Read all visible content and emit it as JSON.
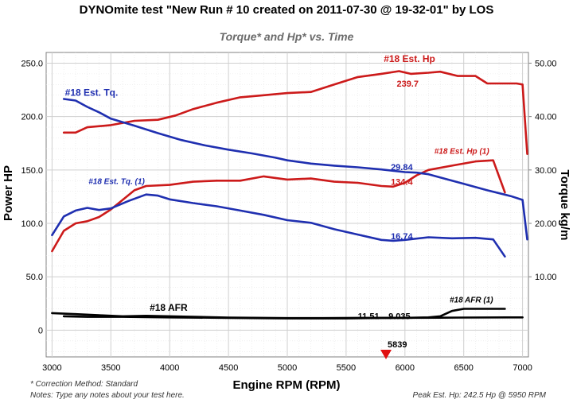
{
  "title": "DYNOmite test \"New Run # 10 created on 2011-07-30 @ 19-32-01\" by LOS",
  "subtitle": "Torque* and Hp* vs. Time",
  "footer": {
    "correction": "* Correction Method: Standard",
    "notes": "Notes: Type any notes about your test here.",
    "peak": "Peak Est. Hp: 242.5 Hp @ 5950 RPM"
  },
  "colors": {
    "hp": "#cc1a1a",
    "torque": "#1f2fb0",
    "afr": "#000000",
    "marker": "#e01010"
  },
  "chart_data": {
    "type": "line",
    "title": "DYNOmite test \"New Run # 10 created on 2011-07-30 @ 19-32-01\" by LOS",
    "subtitle": "Torque* and Hp* vs. Time",
    "xlabel": "Engine RPM (RPM)",
    "ylabel_left": "Power HP",
    "ylabel_right": "Torque kg/m",
    "xlim": [
      2950,
      7050
    ],
    "ylim_left": [
      -25,
      260
    ],
    "ylim_right": [
      -5,
      52
    ],
    "x_ticks": [
      3000,
      3500,
      4000,
      4500,
      5000,
      5500,
      6000,
      6500,
      7000
    ],
    "y_left_ticks": [
      "0",
      "50.0",
      "100.0",
      "150.0",
      "200.0",
      "250.0"
    ],
    "y_right_ticks": [
      "10.00",
      "20.00",
      "30.00",
      "40.00",
      "50.00"
    ],
    "grid": true,
    "marker": {
      "rpm": 5839,
      "label": "5839"
    },
    "series": [
      {
        "name": "#18 Est. Hp",
        "axis": "left",
        "color": "hp",
        "label_rpm": 5820,
        "label_y": 248,
        "value_label": "239.7",
        "value_rpm": 5930,
        "value_y": 231,
        "points": [
          [
            3100,
            185
          ],
          [
            3200,
            185
          ],
          [
            3300,
            190
          ],
          [
            3500,
            192
          ],
          [
            3700,
            196
          ],
          [
            3900,
            197
          ],
          [
            4050,
            201
          ],
          [
            4200,
            207
          ],
          [
            4400,
            213
          ],
          [
            4600,
            218
          ],
          [
            4800,
            220
          ],
          [
            5000,
            222
          ],
          [
            5200,
            223
          ],
          [
            5400,
            230
          ],
          [
            5600,
            237
          ],
          [
            5800,
            240
          ],
          [
            5950,
            242.5
          ],
          [
            6050,
            240
          ],
          [
            6200,
            241
          ],
          [
            6300,
            242
          ],
          [
            6450,
            238
          ],
          [
            6600,
            238
          ],
          [
            6700,
            231
          ],
          [
            6800,
            231
          ],
          [
            6950,
            231
          ],
          [
            7000,
            230
          ],
          [
            7040,
            165
          ]
        ]
      },
      {
        "name": "#18 Est. Hp (1)",
        "axis": "left",
        "color": "hp",
        "label_rpm": 6250,
        "label_y": 162,
        "value_label": "134.4",
        "value_rpm": 5880,
        "value_y": 139,
        "points": [
          [
            3000,
            74
          ],
          [
            3100,
            93
          ],
          [
            3200,
            100
          ],
          [
            3300,
            102
          ],
          [
            3400,
            106
          ],
          [
            3500,
            113
          ],
          [
            3600,
            122
          ],
          [
            3700,
            131
          ],
          [
            3800,
            135
          ],
          [
            4000,
            136
          ],
          [
            4200,
            139
          ],
          [
            4400,
            140
          ],
          [
            4600,
            140
          ],
          [
            4800,
            144
          ],
          [
            5000,
            141
          ],
          [
            5200,
            142
          ],
          [
            5400,
            139
          ],
          [
            5600,
            138
          ],
          [
            5800,
            135
          ],
          [
            5900,
            134.4
          ],
          [
            6000,
            138
          ],
          [
            6100,
            145
          ],
          [
            6200,
            150
          ],
          [
            6400,
            154
          ],
          [
            6600,
            158
          ],
          [
            6750,
            159
          ],
          [
            6850,
            129
          ]
        ]
      },
      {
        "name": "#18 Est. Tq.",
        "axis": "right",
        "color": "torque",
        "label_rpm": 3110,
        "label_y": 43.3,
        "value_label": "29.84",
        "value_rpm": 5880,
        "value_y": 30.6,
        "points": [
          [
            3100,
            43.3
          ],
          [
            3200,
            43
          ],
          [
            3300,
            41.8
          ],
          [
            3400,
            40.8
          ],
          [
            3500,
            39.6
          ],
          [
            3700,
            38.3
          ],
          [
            3900,
            36.9
          ],
          [
            4100,
            35.6
          ],
          [
            4300,
            34.6
          ],
          [
            4500,
            33.8
          ],
          [
            4700,
            33.1
          ],
          [
            4900,
            32.3
          ],
          [
            5000,
            31.8
          ],
          [
            5200,
            31.2
          ],
          [
            5400,
            30.8
          ],
          [
            5600,
            30.5
          ],
          [
            5800,
            30.1
          ],
          [
            6000,
            29.6
          ],
          [
            6100,
            29.5
          ],
          [
            6200,
            29.2
          ],
          [
            6300,
            28.6
          ],
          [
            6500,
            27.4
          ],
          [
            6700,
            26.2
          ],
          [
            6900,
            25.1
          ],
          [
            7000,
            24.4
          ],
          [
            7040,
            17
          ]
        ]
      },
      {
        "name": "#18 Est. Tq. (1)",
        "axis": "right",
        "color": "torque",
        "label_rpm": 3310,
        "label_y": 26.8,
        "value_label": "16.74",
        "value_rpm": 5880,
        "value_y": 17.6,
        "points": [
          [
            3000,
            17.8
          ],
          [
            3100,
            21.3
          ],
          [
            3200,
            22.4
          ],
          [
            3300,
            22.9
          ],
          [
            3400,
            22.5
          ],
          [
            3500,
            22.8
          ],
          [
            3650,
            24.2
          ],
          [
            3800,
            25.4
          ],
          [
            3900,
            25.2
          ],
          [
            4000,
            24.5
          ],
          [
            4200,
            23.8
          ],
          [
            4400,
            23.2
          ],
          [
            4600,
            22.4
          ],
          [
            4800,
            21.6
          ],
          [
            5000,
            20.6
          ],
          [
            5200,
            20.1
          ],
          [
            5400,
            18.9
          ],
          [
            5600,
            17.9
          ],
          [
            5800,
            16.9
          ],
          [
            5900,
            16.74
          ],
          [
            6000,
            16.9
          ],
          [
            6200,
            17.4
          ],
          [
            6400,
            17.2
          ],
          [
            6600,
            17.3
          ],
          [
            6750,
            17
          ],
          [
            6850,
            13.8
          ]
        ]
      },
      {
        "name": "#18 AFR",
        "axis": "left",
        "color": "afr",
        "label_rpm": 3830,
        "label_y": 15,
        "value_label": "11.51",
        "value_rpm": 5600,
        "value_y": 13.5,
        "points": [
          [
            3000,
            16
          ],
          [
            3200,
            15
          ],
          [
            3400,
            14
          ],
          [
            3600,
            13
          ],
          [
            3800,
            13.5
          ],
          [
            4000,
            13
          ],
          [
            4200,
            12.5
          ],
          [
            4500,
            11.8
          ],
          [
            4800,
            11.5
          ],
          [
            5000,
            11.3
          ],
          [
            5300,
            11.3
          ],
          [
            5600,
            11.5
          ],
          [
            5839,
            11.5
          ],
          [
            6000,
            11.6
          ],
          [
            6300,
            11.7
          ],
          [
            6500,
            11.8
          ],
          [
            7000,
            12
          ]
        ]
      },
      {
        "name": "#18 AFR (1)",
        "axis": "left",
        "color": "afr",
        "label_rpm": 6380,
        "label_y": 23,
        "value_label": "9.035",
        "value_rpm": 5860,
        "value_y": 13.5,
        "points": [
          [
            3100,
            13
          ],
          [
            3300,
            12.5
          ],
          [
            3600,
            12.5
          ],
          [
            4000,
            12
          ],
          [
            4500,
            11.5
          ],
          [
            5000,
            11
          ],
          [
            5500,
            11
          ],
          [
            5800,
            11.5
          ],
          [
            6000,
            11.5
          ],
          [
            6200,
            12
          ],
          [
            6300,
            13
          ],
          [
            6400,
            18
          ],
          [
            6500,
            20
          ],
          [
            6700,
            20
          ],
          [
            6850,
            20
          ]
        ]
      }
    ]
  }
}
